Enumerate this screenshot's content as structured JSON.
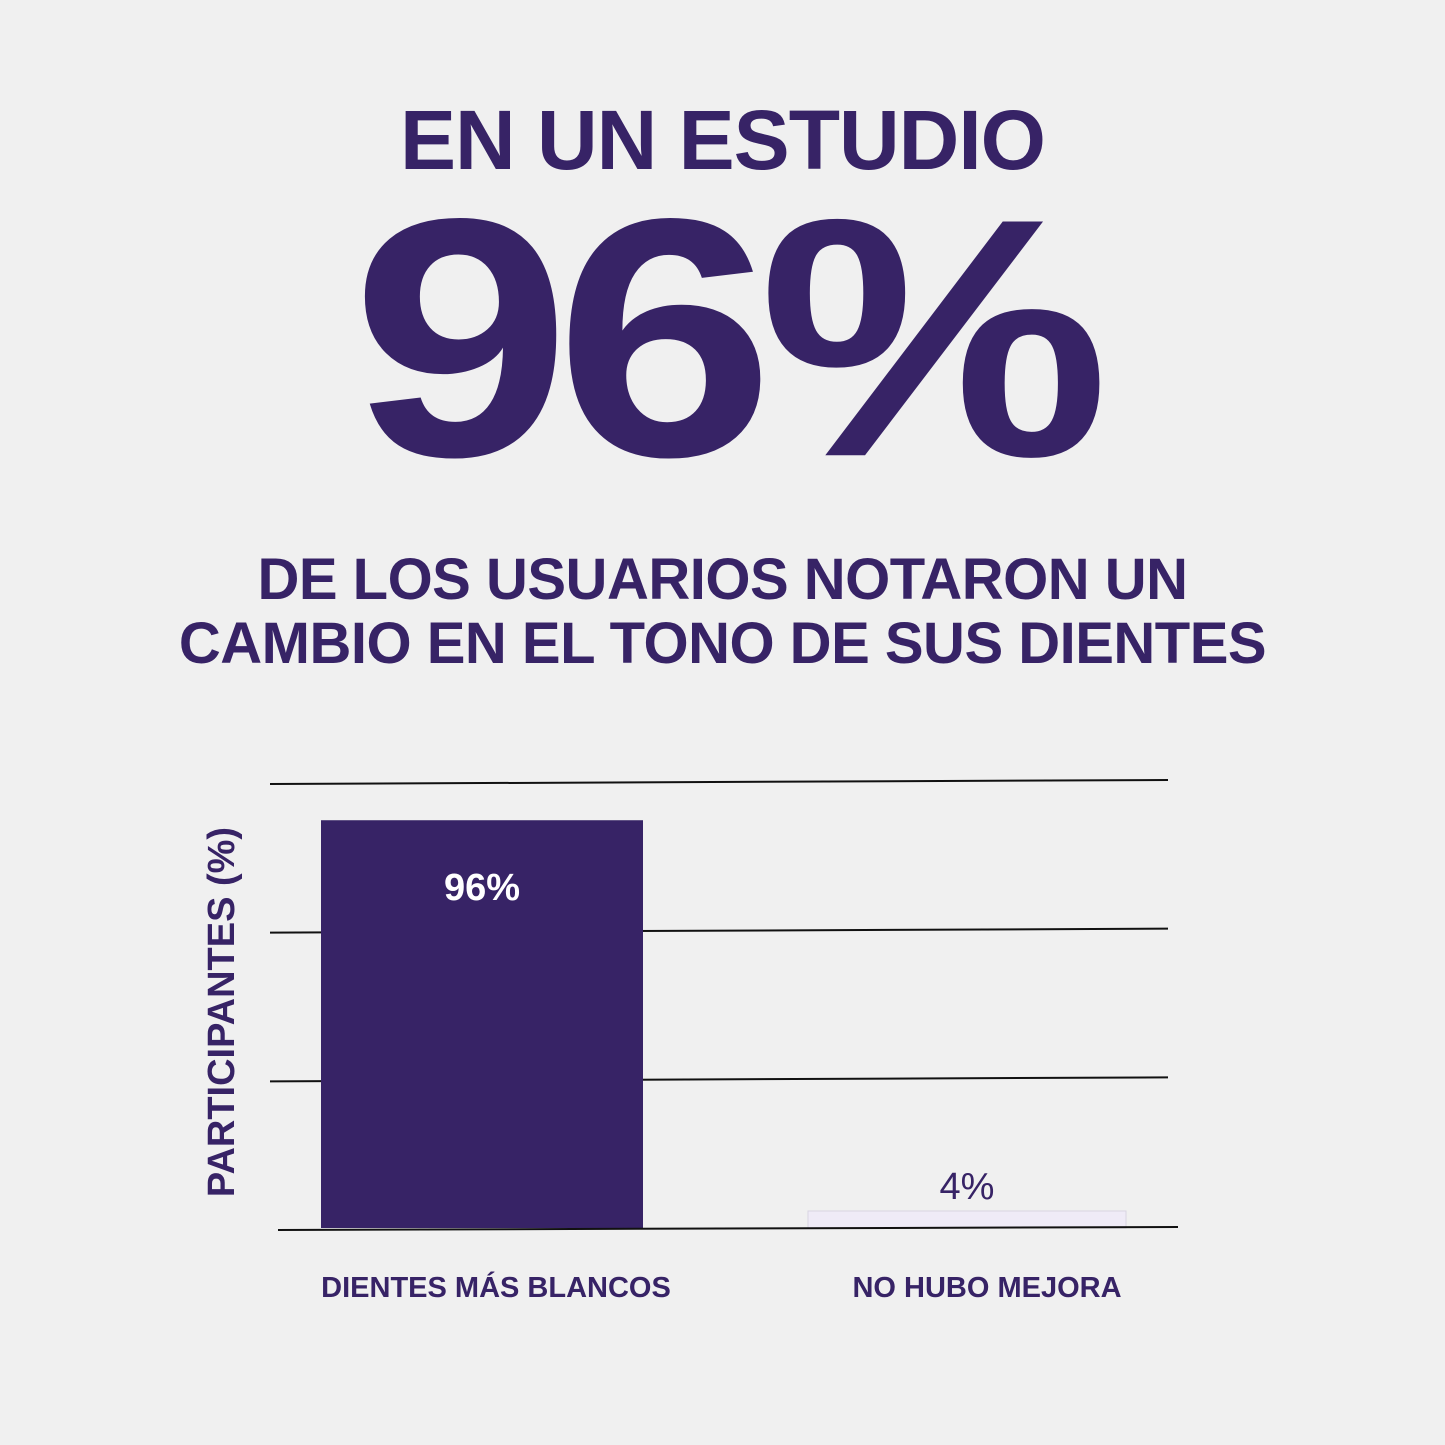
{
  "headline": {
    "intro": "EN UN ESTUDIO",
    "stat": "96%",
    "line1": "DE LOS USUARIOS NOTARON UN",
    "line2": "CAMBIO EN EL TONO DE SUS DIENTES"
  },
  "colors": {
    "background": "#f0f0f0",
    "primary": "#372366",
    "secondary_bar": "#efebf7",
    "secondary_bar_border": "#d8d4e2",
    "grid": "#111111"
  },
  "chart_data": {
    "type": "bar",
    "categories": [
      "DIENTES MÁS BLANCOS",
      "NO HUBO MEJORA"
    ],
    "values": [
      96,
      4
    ],
    "data_labels": [
      "96%",
      "4%"
    ],
    "title": "",
    "xlabel": "",
    "ylabel": "PARTICIPANTES (%)",
    "ylim": [
      0,
      105
    ],
    "gridlines": [
      0,
      35,
      70,
      105
    ],
    "grid": true,
    "legend": "none"
  }
}
